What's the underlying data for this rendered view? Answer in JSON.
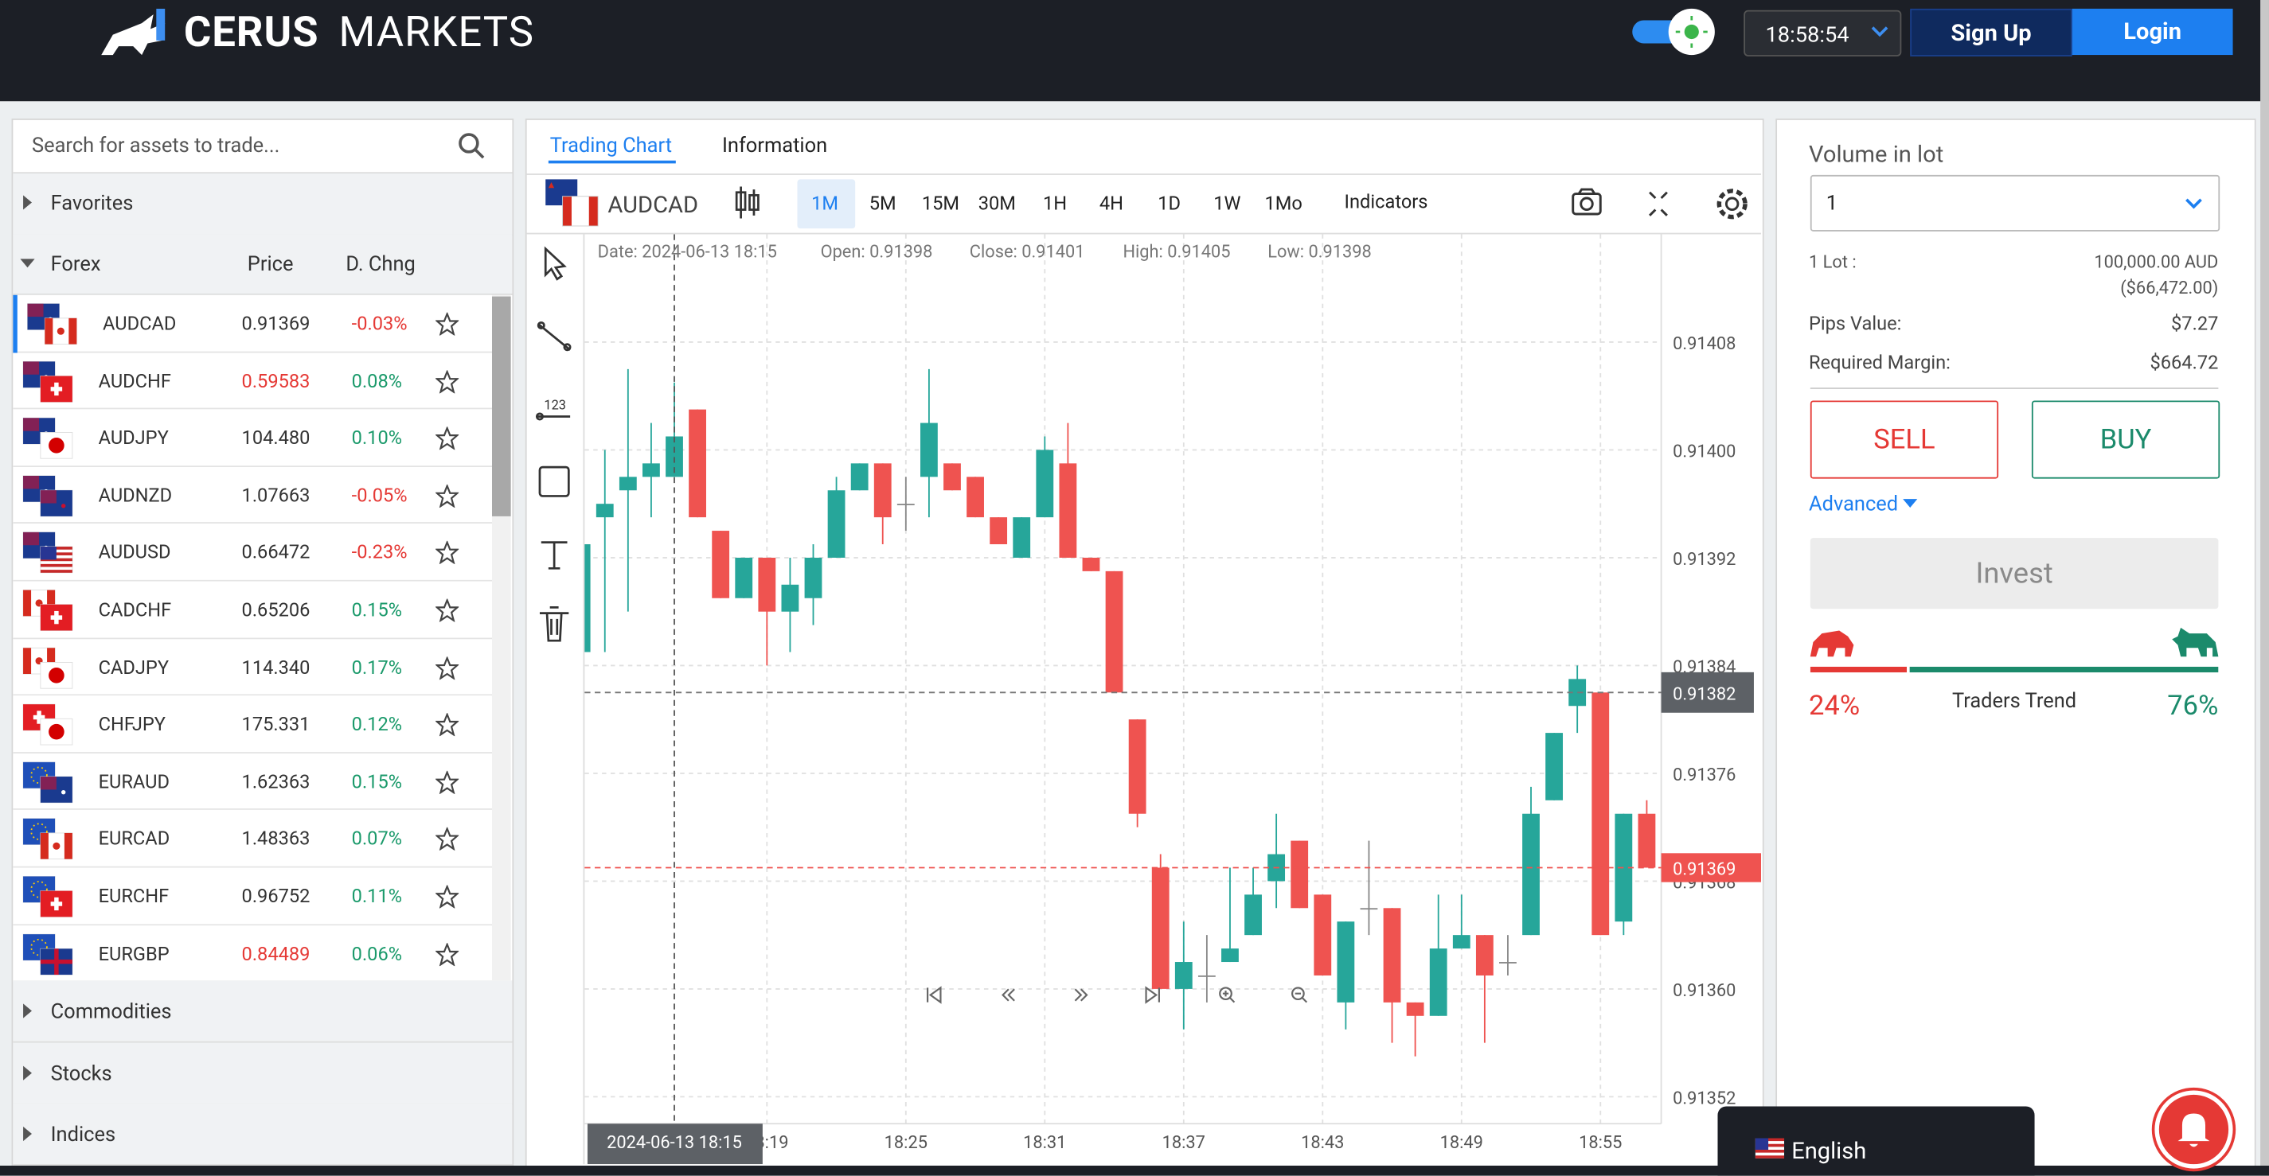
{
  "header": {
    "brand_bold": "CERUS",
    "brand_light": "MARKETS",
    "clock": "18:58:54",
    "sign_up": "Sign Up",
    "login": "Login"
  },
  "assets": {
    "search_placeholder": "Search for assets to trade...",
    "favorites": "Favorites",
    "group": "Forex",
    "col_price": "Price",
    "col_change": "D. Chng",
    "rows": [
      {
        "name": "AUDCAD",
        "price": "0.91369",
        "change": "-0.03%",
        "price_color": "#333333"
      },
      {
        "name": "AUDCHF",
        "price": "0.59583",
        "change": "0.08%",
        "price_color": "#e53935"
      },
      {
        "name": "AUDJPY",
        "price": "104.480",
        "change": "0.10%",
        "price_color": "#333333"
      },
      {
        "name": "AUDNZD",
        "price": "1.07663",
        "change": "-0.05%",
        "price_color": "#333333"
      },
      {
        "name": "AUDUSD",
        "price": "0.66472",
        "change": "-0.23%",
        "price_color": "#333333"
      },
      {
        "name": "CADCHF",
        "price": "0.65206",
        "change": "0.15%",
        "price_color": "#333333"
      },
      {
        "name": "CADJPY",
        "price": "114.340",
        "change": "0.17%",
        "price_color": "#333333"
      },
      {
        "name": "CHFJPY",
        "price": "175.331",
        "change": "0.12%",
        "price_color": "#333333"
      },
      {
        "name": "EURAUD",
        "price": "1.62363",
        "change": "0.15%",
        "price_color": "#333333"
      },
      {
        "name": "EURCAD",
        "price": "1.48363",
        "change": "0.07%",
        "price_color": "#333333"
      },
      {
        "name": "EURCHF",
        "price": "0.96752",
        "change": "0.11%",
        "price_color": "#333333"
      },
      {
        "name": "EURGBP",
        "price": "0.84489",
        "change": "0.06%",
        "price_color": "#e53935"
      }
    ],
    "other_groups": [
      "Commodities",
      "Stocks",
      "Indices"
    ]
  },
  "chart_panel": {
    "tabs": [
      "Trading Chart",
      "Information"
    ],
    "symbol": "AUDCAD",
    "intervals": [
      "1M",
      "5M",
      "15M",
      "30M",
      "1H",
      "4H",
      "1D",
      "1W",
      "1Mo"
    ],
    "indicators": "Indicators"
  },
  "chart_data": {
    "type": "candlestick",
    "x": [
      "18:11",
      "18:12",
      "18:13",
      "18:14",
      "18:15",
      "18:16",
      "18:17",
      "18:18",
      "18:19",
      "18:20",
      "18:21",
      "18:22",
      "18:23",
      "18:24",
      "18:25",
      "18:26",
      "18:27",
      "18:28",
      "18:29",
      "18:30",
      "18:31",
      "18:32",
      "18:33",
      "18:34",
      "18:35",
      "18:36",
      "18:37",
      "18:38",
      "18:39",
      "18:40",
      "18:41",
      "18:42",
      "18:43",
      "18:44",
      "18:45",
      "18:46",
      "18:47",
      "18:48",
      "18:49",
      "18:50",
      "18:51",
      "18:52",
      "18:53",
      "18:54",
      "18:55",
      "18:56",
      "18:57"
    ],
    "open": [
      0.91385,
      0.91395,
      0.91397,
      0.91398,
      0.91398,
      0.91403,
      0.91394,
      0.91389,
      0.91392,
      0.91388,
      0.91389,
      0.91392,
      0.91397,
      0.91399,
      0.91396,
      0.91398,
      0.91399,
      0.91398,
      0.91395,
      0.91392,
      0.91395,
      0.91399,
      0.91392,
      0.91391,
      0.9138,
      0.91369,
      0.9136,
      0.91361,
      0.91362,
      0.91364,
      0.91368,
      0.91371,
      0.91367,
      0.91359,
      0.91366,
      0.91366,
      0.91359,
      0.91358,
      0.91363,
      0.91364,
      0.91362,
      0.91364,
      0.91374,
      0.91381,
      0.91382,
      0.91365,
      0.91373
    ],
    "high": [
      0.91393,
      0.914,
      0.91406,
      0.91402,
      0.91405,
      0.91403,
      0.91394,
      0.91392,
      0.91392,
      0.91392,
      0.91393,
      0.91398,
      0.91399,
      0.91399,
      0.91398,
      0.91406,
      0.91399,
      0.91398,
      0.91395,
      0.91395,
      0.91401,
      0.91402,
      0.91392,
      0.91391,
      0.9138,
      0.9137,
      0.91365,
      0.91364,
      0.91369,
      0.91369,
      0.91373,
      0.91371,
      0.91367,
      0.91365,
      0.91371,
      0.91366,
      0.91359,
      0.91367,
      0.91367,
      0.91364,
      0.91364,
      0.91375,
      0.91379,
      0.91384,
      0.91382,
      0.91373,
      0.91374
    ],
    "low": [
      0.91385,
      0.91385,
      0.91388,
      0.91395,
      0.91398,
      0.91395,
      0.91389,
      0.91389,
      0.91384,
      0.91385,
      0.91387,
      0.91392,
      0.91397,
      0.91393,
      0.91394,
      0.91395,
      0.91397,
      0.91395,
      0.91393,
      0.91392,
      0.91395,
      0.91392,
      0.91391,
      0.91382,
      0.91372,
      0.9136,
      0.91357,
      0.91359,
      0.91362,
      0.91364,
      0.91366,
      0.91366,
      0.91361,
      0.91357,
      0.91364,
      0.91356,
      0.91355,
      0.91358,
      0.91363,
      0.91356,
      0.91361,
      0.91364,
      0.91374,
      0.91379,
      0.91364,
      0.91364,
      0.91369
    ],
    "close": [
      0.91393,
      0.91396,
      0.91398,
      0.91399,
      0.91401,
      0.91395,
      0.91389,
      0.91392,
      0.91388,
      0.9139,
      0.91392,
      0.91397,
      0.91399,
      0.91395,
      0.91396,
      0.91402,
      0.91397,
      0.91395,
      0.91393,
      0.91395,
      0.914,
      0.91392,
      0.91391,
      0.91382,
      0.91373,
      0.9136,
      0.91362,
      0.91361,
      0.91363,
      0.91367,
      0.9137,
      0.91366,
      0.91361,
      0.91365,
      0.91366,
      0.91359,
      0.91358,
      0.91363,
      0.91364,
      0.91361,
      0.91362,
      0.91373,
      0.91379,
      0.91383,
      0.91364,
      0.91373,
      0.91369
    ],
    "up_color": "#26a69a",
    "down_color": "#ef5350",
    "ylim": [
      0.9135,
      0.91416
    ],
    "yticks": [
      0.91408,
      {
        "value": 0.914,
        "label": "0.91400"
      },
      0.91392,
      0.91384,
      0.91376,
      0.91368,
      {
        "value": 0.9136,
        "label": "0.91360"
      },
      0.91352
    ],
    "xticks": [
      "18:19",
      "18:25",
      "18:31",
      "18:37",
      "18:43",
      "18:49",
      "18:55"
    ],
    "grid": true,
    "crosshair": {
      "info": [
        "Date: 2024-06-13 18:15",
        "Open: 0.91398",
        "Close: 0.91401",
        "High: 0.91405",
        "Low: 0.91398"
      ],
      "time_label": "2024-06-13 18:15",
      "price": 0.91382
    },
    "last_price": 0.91369
  },
  "order": {
    "volume_label": "Volume in lot",
    "volume": "1",
    "lot_label": "1 Lot :",
    "lot_value": "100,000.00 AUD",
    "lot_value_usd": "($66,472.00)",
    "pips_label": "Pips Value:",
    "pips_value": "$7.27",
    "margin_label": "Required Margin:",
    "margin_value": "$664.72",
    "sell": "SELL",
    "buy": "BUY",
    "advanced": "Advanced",
    "invest": "Invest"
  },
  "trend": {
    "label": "Traders Trend",
    "values": [
      24,
      76
    ],
    "value_labels": [
      "24%",
      "76%"
    ],
    "colors": [
      "#e53935",
      "#1b8a6b"
    ]
  },
  "language": "English"
}
